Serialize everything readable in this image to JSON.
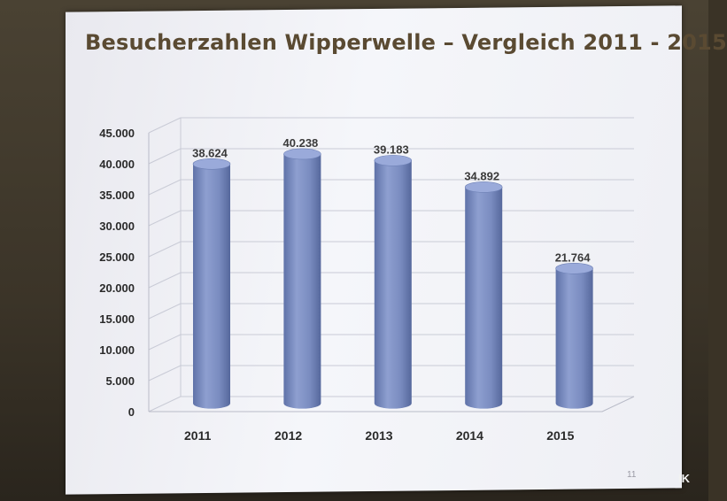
{
  "title": "Besucherzahlen Wipperwelle – Vergleich 2011 - 2015",
  "page_number": "11",
  "credit": "IK",
  "colors": {
    "bar": "#7c8fc4",
    "title": "#5a4a32",
    "grid": "#c9cbd6"
  },
  "chart_data": {
    "type": "bar",
    "style": "3d-cylinder",
    "title": "Besucherzahlen Wipperwelle – Vergleich 2011 - 2015",
    "categories": [
      "2011",
      "2012",
      "2013",
      "2014",
      "2015"
    ],
    "values": [
      38624,
      40238,
      39183,
      34892,
      21764
    ],
    "data_labels": [
      "38.624",
      "40.238",
      "39.183",
      "34.892",
      "21.764"
    ],
    "y_ticks": [
      "0",
      "5.000",
      "10.000",
      "15.000",
      "20.000",
      "25.000",
      "30.000",
      "35.000",
      "40.000",
      "45.000"
    ],
    "ylim": [
      0,
      45000
    ],
    "xlabel": "",
    "ylabel": "",
    "grid": true,
    "legend": "none"
  }
}
